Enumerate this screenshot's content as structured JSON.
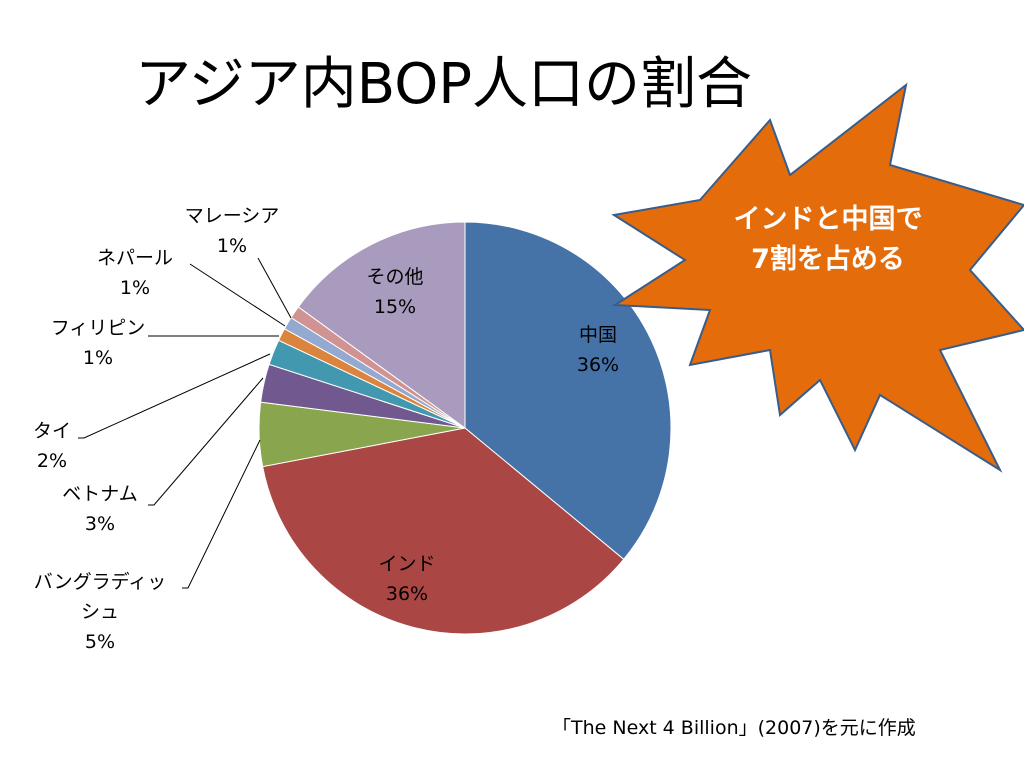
{
  "title": "アジア内BOP人口の割合",
  "callout": {
    "line1": "インドと中国で",
    "line2": "7割を占める",
    "fill": "#E46C0A",
    "stroke": "#385D8A"
  },
  "source": "「The Next 4 Billion」(2007)を元に作成",
  "chart_data": {
    "type": "pie",
    "start": "12 o'clock",
    "direction": "clockwise",
    "slices": [
      {
        "label": "中国",
        "value": 36,
        "display": "36%",
        "color": "#4572A7"
      },
      {
        "label": "インド",
        "value": 36,
        "display": "36%",
        "color": "#AA4643"
      },
      {
        "label": "バングラディッシュ",
        "value": 5,
        "display": "5%",
        "color": "#89A54E"
      },
      {
        "label": "ベトナム",
        "value": 3,
        "display": "3%",
        "color": "#71588F"
      },
      {
        "label": "タイ",
        "value": 2,
        "display": "2%",
        "color": "#4198AF"
      },
      {
        "label": "フィリピン",
        "value": 1,
        "display": "1%",
        "color": "#DB843D"
      },
      {
        "label": "ネパール",
        "value": 1,
        "display": "1%",
        "color": "#93A9CF"
      },
      {
        "label": "マレーシア",
        "value": 1,
        "display": "1%",
        "color": "#D19392"
      },
      {
        "label": "その他",
        "value": 15,
        "display": "15%",
        "color": "#A99BBD"
      }
    ]
  }
}
